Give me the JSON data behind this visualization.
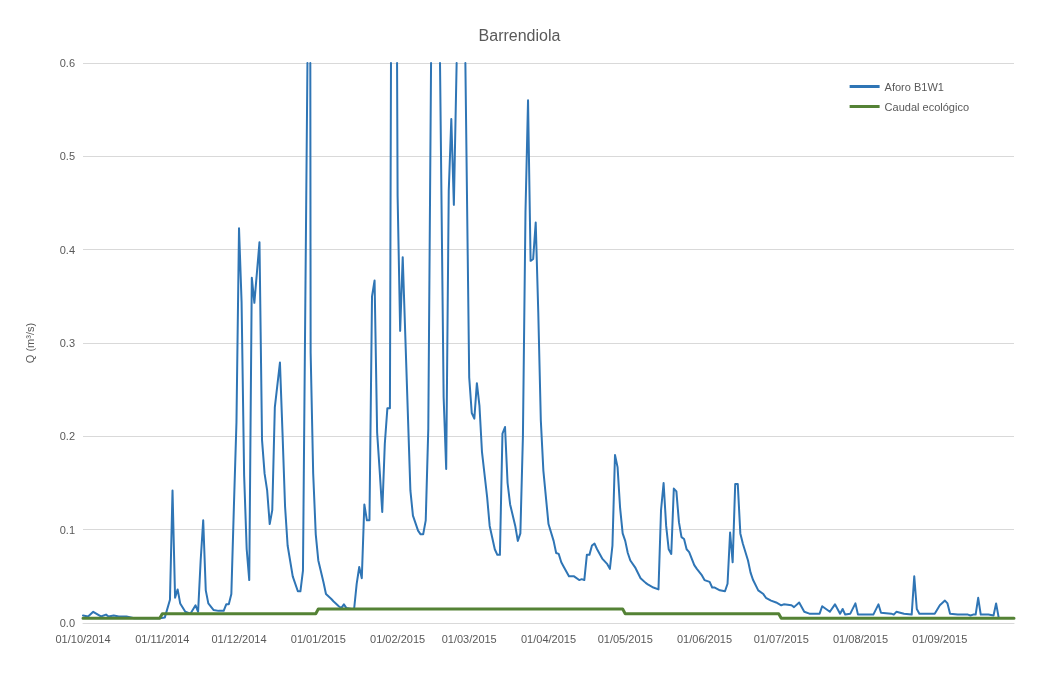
{
  "chart_data": {
    "type": "line",
    "title": "Barrendiola",
    "ylabel": "Q (m³/s)",
    "xlim": [
      "2014-10-01",
      "2015-09-30"
    ],
    "xticks": [
      {
        "value": "2014-10-01",
        "label": "01/10/2014"
      },
      {
        "value": "2014-11-01",
        "label": "01/11/2014"
      },
      {
        "value": "2014-12-01",
        "label": "01/12/2014"
      },
      {
        "value": "2015-01-01",
        "label": "01/01/2015"
      },
      {
        "value": "2015-02-01",
        "label": "01/02/2015"
      },
      {
        "value": "2015-03-01",
        "label": "01/03/2015"
      },
      {
        "value": "2015-04-01",
        "label": "01/04/2015"
      },
      {
        "value": "2015-05-01",
        "label": "01/05/2015"
      },
      {
        "value": "2015-06-01",
        "label": "01/06/2015"
      },
      {
        "value": "2015-07-01",
        "label": "01/07/2015"
      },
      {
        "value": "2015-08-01",
        "label": "01/08/2015"
      },
      {
        "value": "2015-09-01",
        "label": "01/09/2015"
      }
    ],
    "ylim": [
      0,
      0.6
    ],
    "yticks": [
      {
        "value": 0,
        "label": "0.0"
      },
      0.1,
      0.2,
      0.3,
      0.4,
      0.5,
      0.6
    ],
    "grid": "y",
    "legend": "top right",
    "marker": "none",
    "line_style": "solid",
    "series": [
      {
        "name": "Aforo B1W1",
        "color": "#2f75b5",
        "x": [
          "2014-10-01",
          "2014-10-03",
          "2014-10-05",
          "2014-10-08",
          "2014-10-10",
          "2014-10-11",
          "2014-10-13",
          "2014-10-15",
          "2014-10-18",
          "2014-10-21",
          "2014-10-31",
          "2014-11-02",
          "2014-11-04",
          "2014-11-05",
          "2014-11-06",
          "2014-11-07",
          "2014-11-08",
          "2014-11-10",
          "2014-11-12",
          "2014-11-14",
          "2014-11-15",
          "2014-11-16",
          "2014-11-17",
          "2014-11-18",
          "2014-11-19",
          "2014-11-21",
          "2014-11-23",
          "2014-11-25",
          "2014-11-26",
          "2014-11-27",
          "2014-11-28",
          "2014-11-29",
          "2014-11-30",
          "2014-12-01",
          "2014-12-02",
          "2014-12-03",
          "2014-12-04",
          "2014-12-05",
          "2014-12-06",
          "2014-12-07",
          "2014-12-09",
          "2014-12-10",
          "2014-12-11",
          "2014-12-12",
          "2014-12-13",
          "2014-12-14",
          "2014-12-15",
          "2014-12-17",
          "2014-12-18",
          "2014-12-19",
          "2014-12-20",
          "2014-12-22",
          "2014-12-24",
          "2014-12-25",
          "2014-12-26",
          "2014-12-27T18:00",
          "2014-12-28T06:00",
          "2014-12-28T21:00",
          "2014-12-29",
          "2014-12-30",
          "2014-12-31",
          "2015-01-01",
          "2015-01-03",
          "2015-01-04",
          "2015-01-06",
          "2015-01-07",
          "2015-01-09",
          "2015-01-10",
          "2015-01-11",
          "2015-01-12",
          "2015-01-14",
          "2015-01-15",
          "2015-01-16",
          "2015-01-17",
          "2015-01-18",
          "2015-01-19",
          "2015-01-20",
          "2015-01-21",
          "2015-01-22",
          "2015-01-23",
          "2015-01-24",
          "2015-01-25",
          "2015-01-26",
          "2015-01-27",
          "2015-01-28",
          "2015-01-29",
          "2015-01-29T10:00",
          "2015-01-30T12:00",
          "2015-01-31T19:00",
          "2015-02-01",
          "2015-02-02",
          "2015-02-03",
          "2015-02-06",
          "2015-02-07",
          "2015-02-09",
          "2015-02-10",
          "2015-02-11",
          "2015-02-12",
          "2015-02-13",
          "2015-02-14T02:00",
          "2015-02-15T12:00",
          "2015-02-17T14:00",
          "2015-02-19",
          "2015-02-20",
          "2015-02-21",
          "2015-02-22",
          "2015-02-23",
          "2015-02-24T02:00",
          "2015-02-25T12:00",
          "2015-02-27T12:00",
          "2015-03-01",
          "2015-03-02",
          "2015-03-03",
          "2015-03-04",
          "2015-03-05",
          "2015-03-06",
          "2015-03-08",
          "2015-03-09",
          "2015-03-11",
          "2015-03-12",
          "2015-03-13",
          "2015-03-14",
          "2015-03-15",
          "2015-03-16",
          "2015-03-17",
          "2015-03-19",
          "2015-03-20",
          "2015-03-21",
          "2015-03-22",
          "2015-03-23",
          "2015-03-24",
          "2015-03-25",
          "2015-03-26",
          "2015-03-27",
          "2015-03-28",
          "2015-03-29",
          "2015-03-30",
          "2015-04-01",
          "2015-04-03",
          "2015-04-04",
          "2015-04-05",
          "2015-04-06",
          "2015-04-07",
          "2015-04-09",
          "2015-04-10",
          "2015-04-11",
          "2015-04-13",
          "2015-04-14",
          "2015-04-15",
          "2015-04-16",
          "2015-04-17",
          "2015-04-18",
          "2015-04-19",
          "2015-04-20",
          "2015-04-22",
          "2015-04-24",
          "2015-04-25",
          "2015-04-26",
          "2015-04-27",
          "2015-04-28",
          "2015-04-29",
          "2015-04-30",
          "2015-05-01",
          "2015-05-02",
          "2015-05-03",
          "2015-05-05",
          "2015-05-07",
          "2015-05-09",
          "2015-05-10",
          "2015-05-12",
          "2015-05-14",
          "2015-05-15",
          "2015-05-16",
          "2015-05-17",
          "2015-05-18",
          "2015-05-19",
          "2015-05-20",
          "2015-05-21",
          "2015-05-22",
          "2015-05-23",
          "2015-05-24",
          "2015-05-25",
          "2015-05-26",
          "2015-05-28",
          "2015-05-29",
          "2015-05-31",
          "2015-06-01",
          "2015-06-03",
          "2015-06-04",
          "2015-06-05",
          "2015-06-07",
          "2015-06-09",
          "2015-06-10",
          "2015-06-11",
          "2015-06-12",
          "2015-06-13",
          "2015-06-14",
          "2015-06-15",
          "2015-06-16",
          "2015-06-18",
          "2015-06-19",
          "2015-06-20",
          "2015-06-22",
          "2015-06-24",
          "2015-06-25",
          "2015-06-27",
          "2015-06-29",
          "2015-07-01",
          "2015-07-02",
          "2015-07-05",
          "2015-07-06",
          "2015-07-08",
          "2015-07-10",
          "2015-07-12",
          "2015-07-16",
          "2015-07-17",
          "2015-07-20",
          "2015-07-22",
          "2015-07-24",
          "2015-07-25",
          "2015-07-26",
          "2015-07-28",
          "2015-07-30",
          "2015-07-31",
          "2015-08-06",
          "2015-08-08",
          "2015-08-09",
          "2015-08-13",
          "2015-08-14",
          "2015-08-15",
          "2015-08-18",
          "2015-08-21",
          "2015-08-22",
          "2015-08-23",
          "2015-08-24",
          "2015-08-30",
          "2015-09-01",
          "2015-09-03",
          "2015-09-04",
          "2015-09-05",
          "2015-09-08",
          "2015-09-12",
          "2015-09-13",
          "2015-09-14",
          "2015-09-15",
          "2015-09-16",
          "2015-09-17",
          "2015-09-20",
          "2015-09-22",
          "2015-09-23",
          "2015-09-24"
        ],
        "values": [
          0.008,
          0.007,
          0.012,
          0.007,
          0.009,
          0.007,
          0.008,
          0.007,
          0.007,
          0.005,
          0.005,
          0.006,
          0.025,
          0.142,
          0.027,
          0.036,
          0.021,
          0.012,
          0.01,
          0.019,
          0.012,
          0.067,
          0.11,
          0.035,
          0.021,
          0.014,
          0.013,
          0.013,
          0.02,
          0.02,
          0.031,
          0.125,
          0.215,
          0.423,
          0.344,
          0.158,
          0.079,
          0.046,
          0.37,
          0.343,
          0.408,
          0.196,
          0.16,
          0.142,
          0.106,
          0.121,
          0.231,
          0.279,
          0.204,
          0.125,
          0.083,
          0.05,
          0.034,
          0.034,
          0.056,
          0.6,
          null,
          0.6,
          0.29,
          0.16,
          0.095,
          0.067,
          0.044,
          0.031,
          0.026,
          0.023,
          0.018,
          0.016,
          0.02,
          0.016,
          0.015,
          0.015,
          0.042,
          0.06,
          0.048,
          0.127,
          0.11,
          0.11,
          0.35,
          0.367,
          0.204,
          0.163,
          0.119,
          0.192,
          0.23,
          0.23,
          0.6,
          null,
          0.6,
          0.458,
          0.313,
          0.392,
          0.142,
          0.115,
          0.099,
          0.095,
          0.095,
          0.11,
          0.208,
          0.6,
          null,
          0.6,
          0.242,
          0.165,
          0.463,
          0.54,
          0.448,
          0.6,
          null,
          0.6,
          0.263,
          0.225,
          0.219,
          0.257,
          0.233,
          0.183,
          0.135,
          0.104,
          0.079,
          0.073,
          0.073,
          0.203,
          0.21,
          0.15,
          0.127,
          0.104,
          0.088,
          0.096,
          0.2,
          0.44,
          0.56,
          0.388,
          0.39,
          0.429,
          0.333,
          0.217,
          0.163,
          0.106,
          0.088,
          0.075,
          0.074,
          0.065,
          0.06,
          0.05,
          0.05,
          0.05,
          0.046,
          0.047,
          0.046,
          0.073,
          0.073,
          0.083,
          0.085,
          0.079,
          0.069,
          0.063,
          0.058,
          0.083,
          0.18,
          0.167,
          0.123,
          0.096,
          0.088,
          0.075,
          0.067,
          0.059,
          0.048,
          0.043,
          0.041,
          0.038,
          0.036,
          0.121,
          0.15,
          0.104,
          0.079,
          0.074,
          0.144,
          0.141,
          0.108,
          0.092,
          0.09,
          0.079,
          0.076,
          0.062,
          0.058,
          0.051,
          0.046,
          0.044,
          0.038,
          0.038,
          0.035,
          0.034,
          0.042,
          0.097,
          0.065,
          0.149,
          0.149,
          0.096,
          0.085,
          0.067,
          0.054,
          0.046,
          0.035,
          0.031,
          0.027,
          0.024,
          0.022,
          0.019,
          0.02,
          0.019,
          0.017,
          0.022,
          0.012,
          0.01,
          0.01,
          0.018,
          0.012,
          0.02,
          0.01,
          0.015,
          0.009,
          0.01,
          0.021,
          0.009,
          0.009,
          0.02,
          0.011,
          0.01,
          0.009,
          0.012,
          0.01,
          0.009,
          0.05,
          0.015,
          0.01,
          0.01,
          0.019,
          0.024,
          0.021,
          0.01,
          0.009,
          0.009,
          0.008,
          0.009,
          0.009,
          0.027,
          0.009,
          0.009,
          0.008,
          0.021,
          0.006
        ]
      },
      {
        "name": "Caudal ecológico",
        "color": "#548235",
        "x": [
          "2014-10-01",
          "2014-10-31",
          "2014-11-01",
          "2014-12-31",
          "2015-01-01",
          "2015-04-30",
          "2015-05-01",
          "2015-06-30",
          "2015-07-01",
          "2015-09-30"
        ],
        "values": [
          0.005,
          0.005,
          0.01,
          0.01,
          0.015,
          0.015,
          0.01,
          0.01,
          0.005,
          0.005
        ]
      }
    ]
  }
}
